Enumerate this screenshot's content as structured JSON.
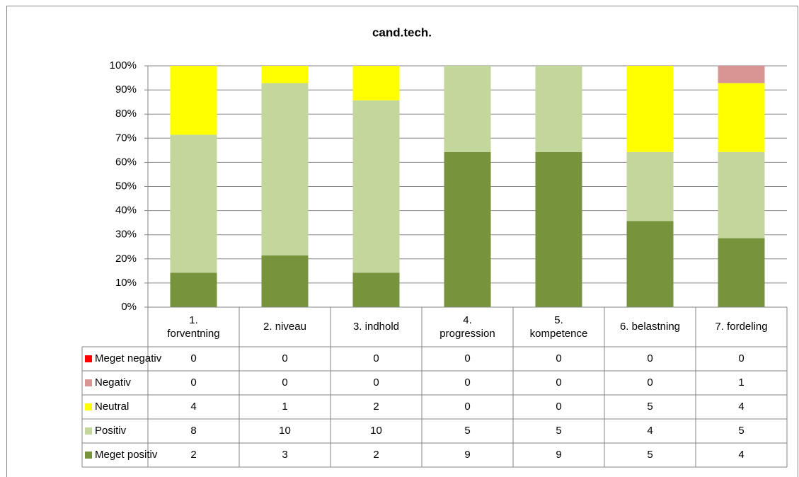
{
  "chart_data": {
    "type": "bar",
    "stack": "percent",
    "title": "cand.tech.",
    "categories": [
      "1. forventning",
      "2. niveau",
      "3. indhold",
      "4. progression",
      "5. kompetence",
      "6. belastning",
      "7. fordeling"
    ],
    "series": [
      {
        "name": "Meget negativ",
        "color": "#ff0000",
        "values": [
          0,
          0,
          0,
          0,
          0,
          0,
          0
        ]
      },
      {
        "name": "Negativ",
        "color": "#d99594",
        "values": [
          0,
          0,
          0,
          0,
          0,
          0,
          1
        ]
      },
      {
        "name": "Neutral",
        "color": "#ffff00",
        "values": [
          4,
          1,
          2,
          0,
          0,
          5,
          4
        ]
      },
      {
        "name": "Positiv",
        "color": "#c3d69b",
        "values": [
          8,
          10,
          10,
          5,
          5,
          4,
          5
        ]
      },
      {
        "name": "Meget positiv",
        "color": "#77933c",
        "values": [
          2,
          3,
          2,
          9,
          9,
          5,
          4
        ]
      }
    ],
    "ylim": [
      0,
      100
    ],
    "yticks": [
      {
        "value": 0,
        "label": "0%"
      },
      {
        "value": 10,
        "label": "10%"
      },
      {
        "value": 20,
        "label": "20%"
      },
      {
        "value": 30,
        "label": "30%"
      },
      {
        "value": 40,
        "label": "40%"
      },
      {
        "value": 50,
        "label": "50%"
      },
      {
        "value": 60,
        "label": "60%"
      },
      {
        "value": 70,
        "label": "70%"
      },
      {
        "value": 80,
        "label": "80%"
      },
      {
        "value": 90,
        "label": "90%"
      },
      {
        "value": 100,
        "label": "100%"
      }
    ],
    "grid": true,
    "data_table": true
  }
}
